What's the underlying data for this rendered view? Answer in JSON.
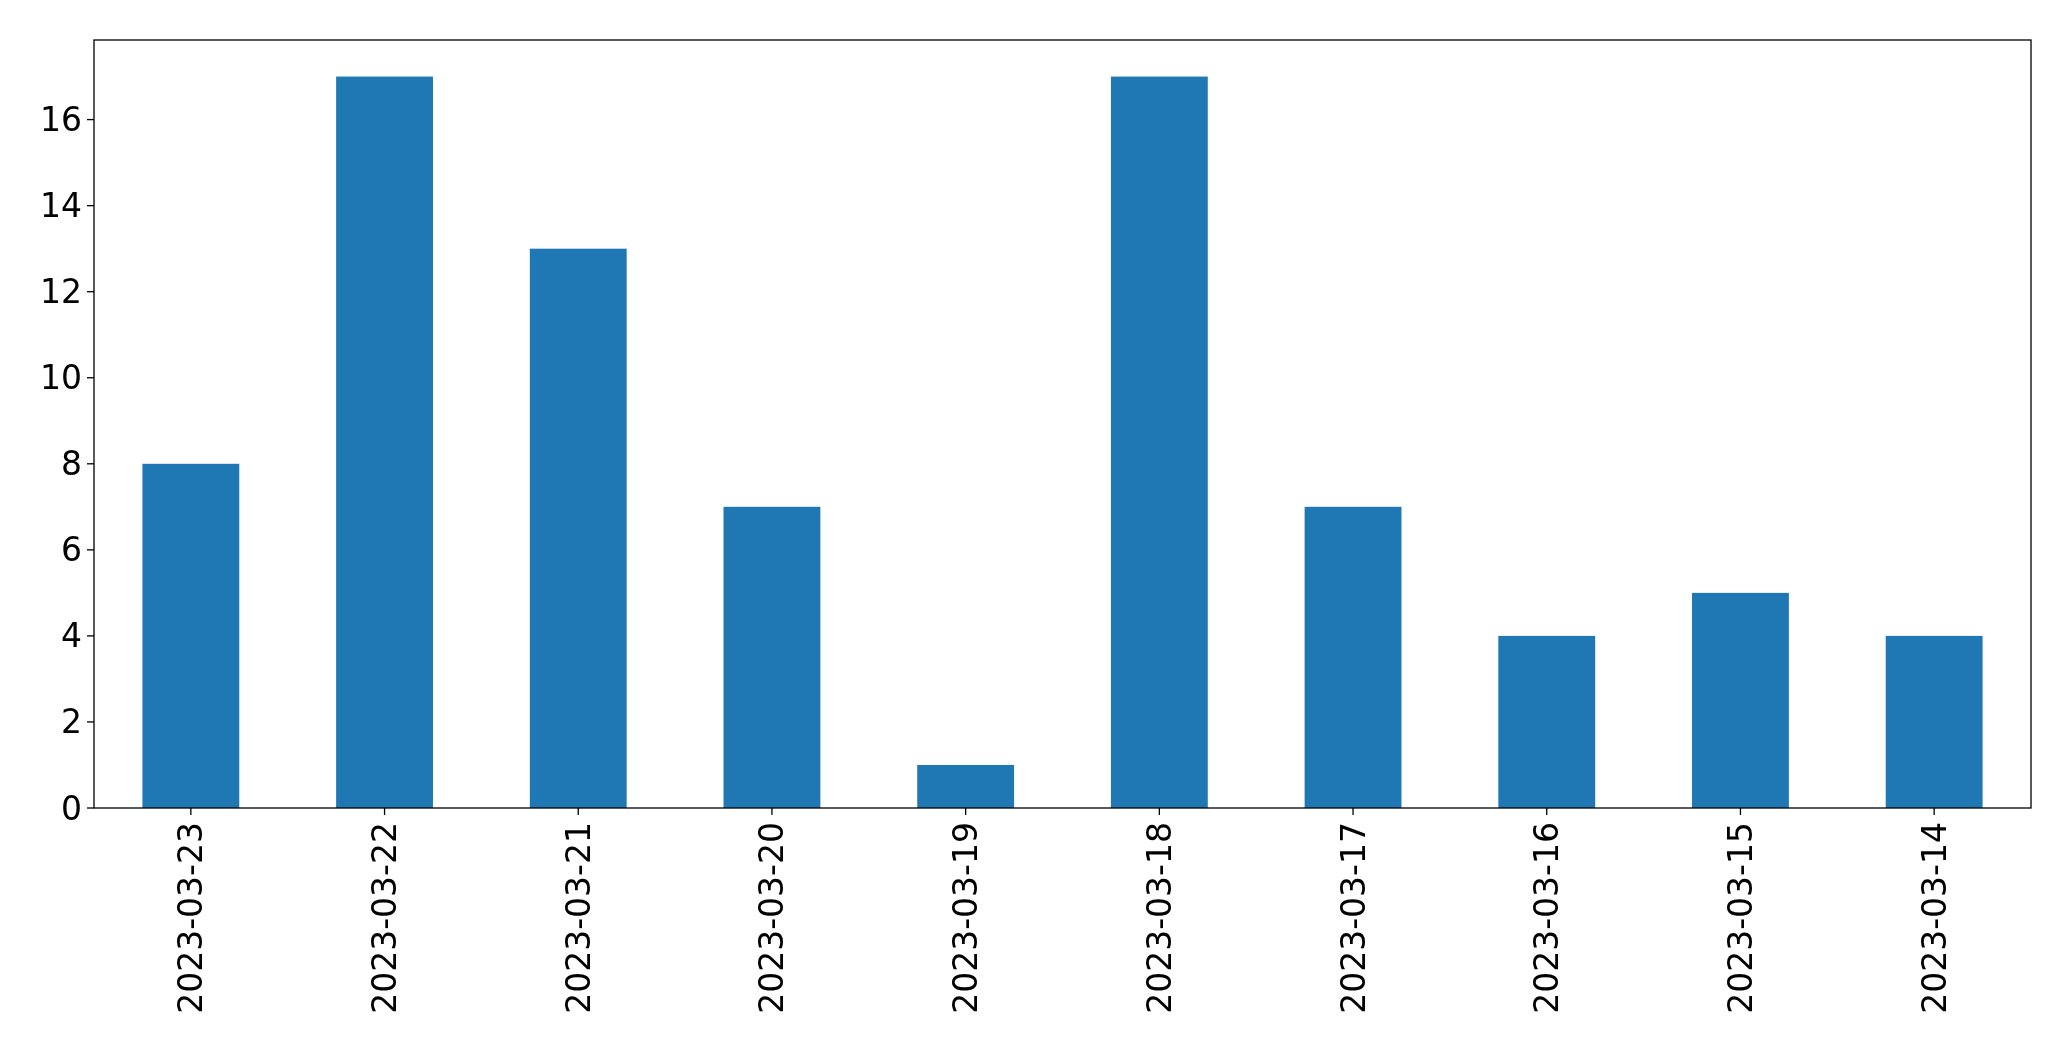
{
  "chart_data": {
    "type": "bar",
    "categories": [
      "2023-03-23",
      "2023-03-22",
      "2023-03-21",
      "2023-03-20",
      "2023-03-19",
      "2023-03-18",
      "2023-03-17",
      "2023-03-16",
      "2023-03-15",
      "2023-03-14"
    ],
    "values": [
      8,
      17,
      13,
      7,
      1,
      17,
      7,
      4,
      5,
      4
    ],
    "color": "#1f77b4",
    "ylim": [
      0,
      17.85
    ],
    "yticks": [
      0,
      2,
      4,
      6,
      8,
      10,
      12,
      14,
      16
    ],
    "grid": false
  }
}
